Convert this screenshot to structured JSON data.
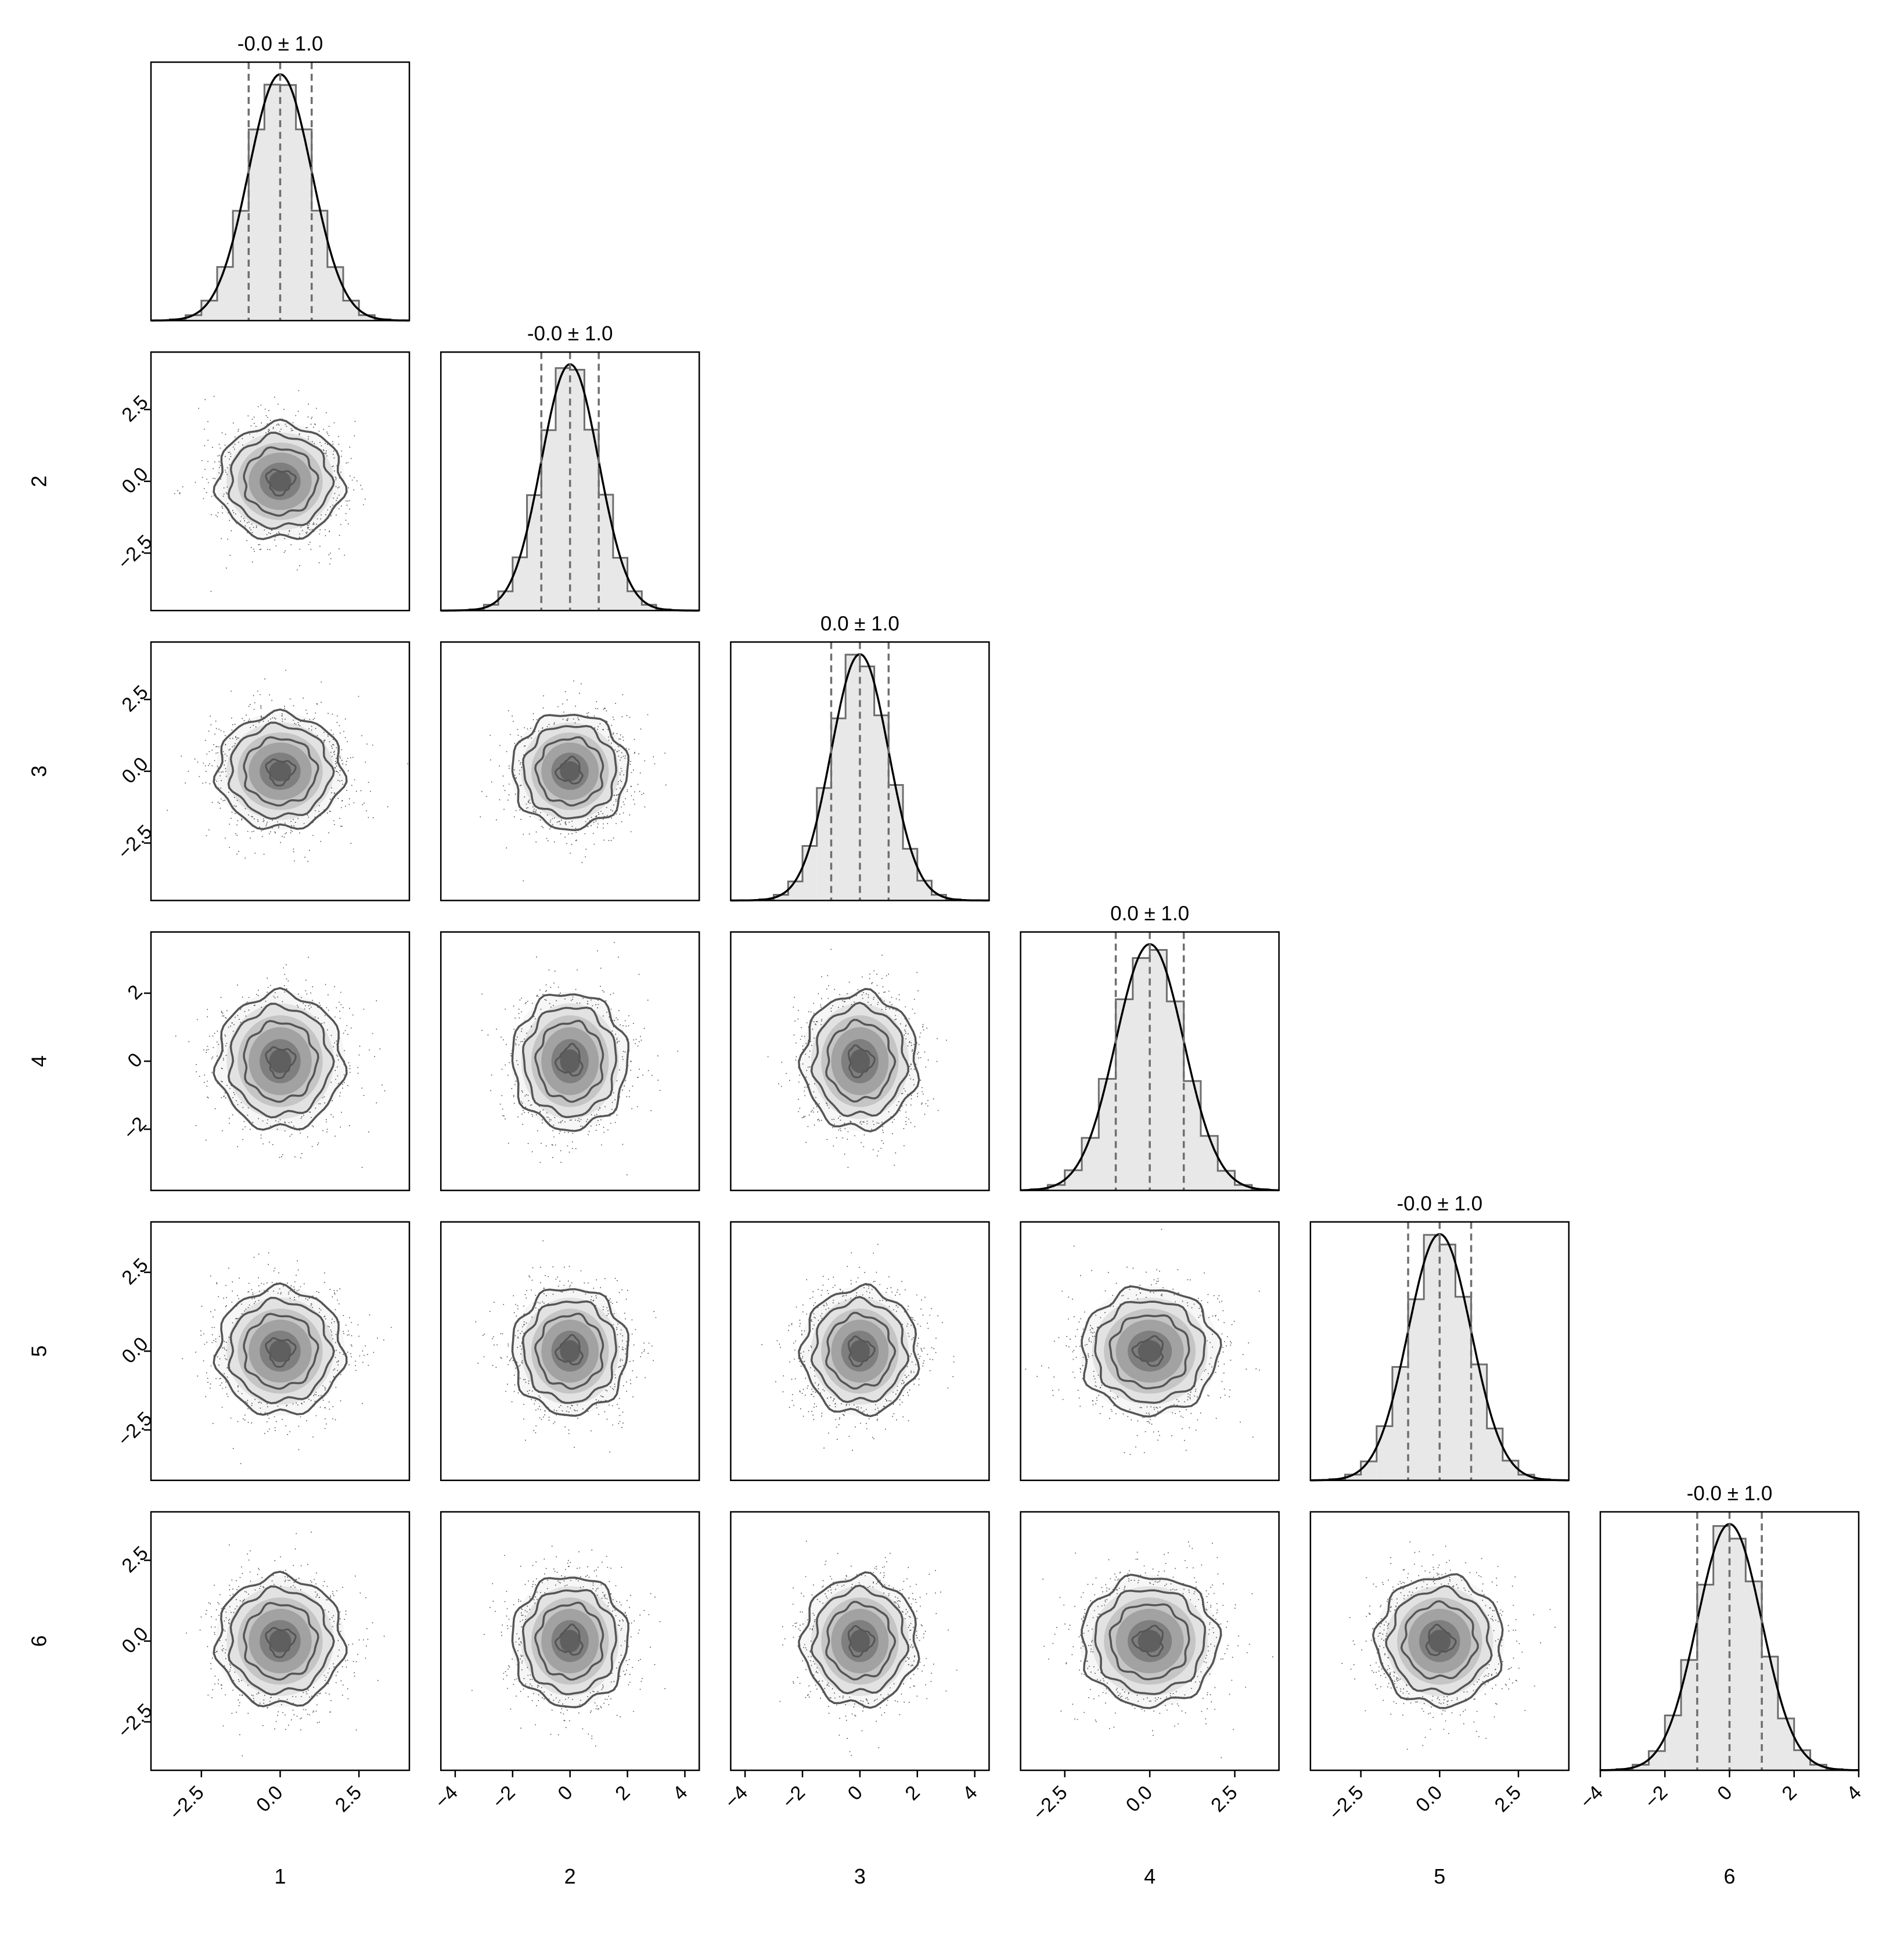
{
  "chart_data": {
    "type": "corner",
    "variables": [
      "1",
      "2",
      "3",
      "4",
      "5",
      "6"
    ],
    "titles": [
      "-0.0 ± 1.0",
      "-0.0 ± 1.0",
      "0.0 ± 1.0",
      "0.0 ± 1.0",
      "-0.0 ± 1.0",
      "-0.0 ± 1.0"
    ],
    "marginal_mean": [
      0.0,
      0.0,
      0.0,
      0.0,
      0.0,
      0.0
    ],
    "marginal_std": [
      1.0,
      1.0,
      1.0,
      1.0,
      1.0,
      1.0
    ],
    "quantile_lines": [
      -1.0,
      0.0,
      1.0
    ],
    "axis_ranges": [
      [
        -4.1,
        4.1
      ],
      [
        -4.5,
        4.5
      ],
      [
        -4.5,
        4.5
      ],
      [
        -3.8,
        3.8
      ],
      [
        -4.1,
        4.1
      ],
      [
        -4.0,
        4.0
      ]
    ],
    "x_tick_values": [
      [
        -2.5,
        0.0,
        2.5
      ],
      [
        -4,
        -2,
        0,
        2,
        4
      ],
      [
        -4,
        -2,
        0,
        2,
        4
      ],
      [
        -2.5,
        0.0,
        2.5
      ],
      [
        -2.5,
        0.0,
        2.5
      ],
      [
        -4,
        -2,
        0,
        2,
        4
      ]
    ],
    "x_tick_labels": [
      [
        "−2.5",
        "0.0",
        "2.5"
      ],
      [
        "−4",
        "−2",
        "0",
        "2",
        "4"
      ],
      [
        "−4",
        "−2",
        "0",
        "2",
        "4"
      ],
      [
        "−2.5",
        "0.0",
        "2.5"
      ],
      [
        "−2.5",
        "0.0",
        "2.5"
      ],
      [
        "−4",
        "−2",
        "0",
        "2",
        "4"
      ]
    ],
    "y_tick_values": [
      [],
      [
        -2.5,
        0.0,
        2.5
      ],
      [
        -2.5,
        0.0,
        2.5
      ],
      [
        -2,
        0,
        2
      ],
      [
        -2.5,
        0.0,
        2.5
      ],
      [
        -2.5,
        0.0,
        2.5
      ]
    ],
    "y_tick_labels": [
      [],
      [
        "−2.5",
        "0.0",
        "2.5"
      ],
      [
        "−2.5",
        "0.0",
        "2.5"
      ],
      [
        "−2",
        "0",
        "2"
      ],
      [
        "−2.5",
        "0.0",
        "2.5"
      ],
      [
        "−2.5",
        "0.0",
        "2.5"
      ]
    ],
    "histogram_bin_width": 0.5,
    "distribution": "standard normal, uncorrelated",
    "scatter": "grey points with density contours (hexbin shading)",
    "colors": {
      "hist_fill": "#e8e8e8",
      "hist_step": "#6e6e6e",
      "kde": "#000000",
      "quantile": "#6e6e6e",
      "points": "#222222",
      "contour": "#555555",
      "shade": "#000000"
    }
  }
}
